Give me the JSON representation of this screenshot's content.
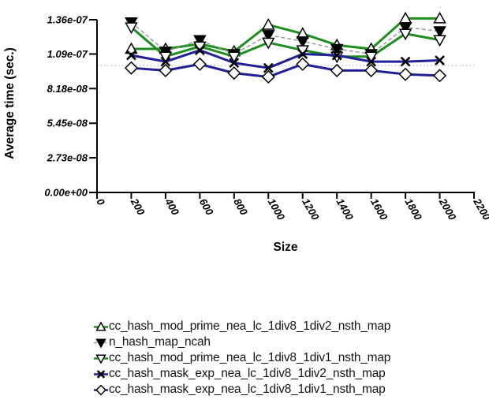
{
  "chart_data": {
    "type": "line",
    "title": "",
    "xlabel": "Size",
    "ylabel": "Average time (sec.)",
    "xlim": [
      0,
      2200
    ],
    "ylim": [
      0,
      1.36e-07
    ],
    "grid": false,
    "legend_position": "bottom-left",
    "x_ticks": [
      {
        "value": 0,
        "label": "0"
      },
      {
        "value": 200,
        "label": "200"
      },
      {
        "value": 400,
        "label": "400"
      },
      {
        "value": 600,
        "label": "600"
      },
      {
        "value": 800,
        "label": "800"
      },
      {
        "value": 1000,
        "label": "1000"
      },
      {
        "value": 1200,
        "label": "1200"
      },
      {
        "value": 1400,
        "label": "1400"
      },
      {
        "value": 1600,
        "label": "1600"
      },
      {
        "value": 1800,
        "label": "1800"
      },
      {
        "value": 2000,
        "label": "2000"
      },
      {
        "value": 2200,
        "label": "2200"
      }
    ],
    "y_ticks": [
      {
        "value": 1.36e-07,
        "label": "1.36e-07"
      },
      {
        "value": 1.09e-07,
        "label": "1.09e-07"
      },
      {
        "value": 8.18e-08,
        "label": "8.18e-08"
      },
      {
        "value": 5.45e-08,
        "label": "5.45e-08"
      },
      {
        "value": 2.73e-08,
        "label": "2.73e-08"
      },
      {
        "value": 0,
        "label": "0.00e+00"
      }
    ],
    "reference_line_y": 1e-07,
    "x": [
      200,
      400,
      600,
      800,
      1000,
      1200,
      1400,
      1600,
      1800,
      2000
    ],
    "series": [
      {
        "label": "cc_hash_mod_prime_nea_lc_1div8_1div2_nsth_map",
        "marker": "triangle-up",
        "marker_fill": "white",
        "line_color": "#1e8e1e",
        "line_style": "solid",
        "values": [
          1.13e-07,
          1.13e-07,
          1.17e-07,
          1.11e-07,
          1.32e-07,
          1.25e-07,
          1.16e-07,
          1.13e-07,
          1.37e-07,
          1.37e-07
        ]
      },
      {
        "label": "n_hash_map_ncah",
        "marker": "triangle-down",
        "marker_fill": "black",
        "line_color": "#8f8f8f",
        "line_style": "dashed",
        "values": [
          1.34e-07,
          1.11e-07,
          1.2e-07,
          1.09e-07,
          1.24e-07,
          1.19e-07,
          1.13e-07,
          1.09e-07,
          1.3e-07,
          1.27e-07
        ]
      },
      {
        "label": "cc_hash_mod_prime_nea_lc_1div8_1div1_nsth_map",
        "marker": "triangle-down",
        "marker_fill": "white",
        "line_color": "#1e8e1e",
        "line_style": "solid",
        "values": [
          1.3e-07,
          1.07e-07,
          1.15e-07,
          1.07e-07,
          1.18e-07,
          1.12e-07,
          1.07e-07,
          1.07e-07,
          1.25e-07,
          1.2e-07
        ]
      },
      {
        "label": "cc_hash_mask_exp_nea_lc_1div8_1div2_nsth_map",
        "marker": "x",
        "marker_fill": "black",
        "line_color": "#20209b",
        "line_style": "solid",
        "values": [
          1.08e-07,
          1.03e-07,
          1.12e-07,
          1.02e-07,
          9.8e-08,
          1.09e-07,
          1.08e-07,
          1.03e-07,
          1.03e-07,
          1.04e-07
        ]
      },
      {
        "label": "cc_hash_mask_exp_nea_lc_1div8_1div1_nsth_map",
        "marker": "diamond",
        "marker_fill": "white",
        "line_color": "#20209b",
        "line_style": "solid",
        "values": [
          9.8e-08,
          9.6e-08,
          1.01e-07,
          9.4e-08,
          9.1e-08,
          1.01e-07,
          9.6e-08,
          9.6e-08,
          9.3e-08,
          9.2e-08
        ]
      }
    ],
    "colors": {
      "axis": "#000000",
      "tick_text": "#000000",
      "reference_line": "#b5b5b5",
      "legend_text": "#141414"
    }
  }
}
